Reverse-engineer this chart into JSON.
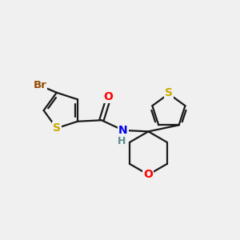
{
  "background_color": "#f0f0f0",
  "bond_color": "#1a1a1a",
  "atom_colors": {
    "Br": "#964B00",
    "S": "#ccaa00",
    "O": "#ff0000",
    "N": "#0000ee",
    "H": "#5a8a8a"
  },
  "figsize": [
    3.0,
    3.0
  ],
  "dpi": 100
}
